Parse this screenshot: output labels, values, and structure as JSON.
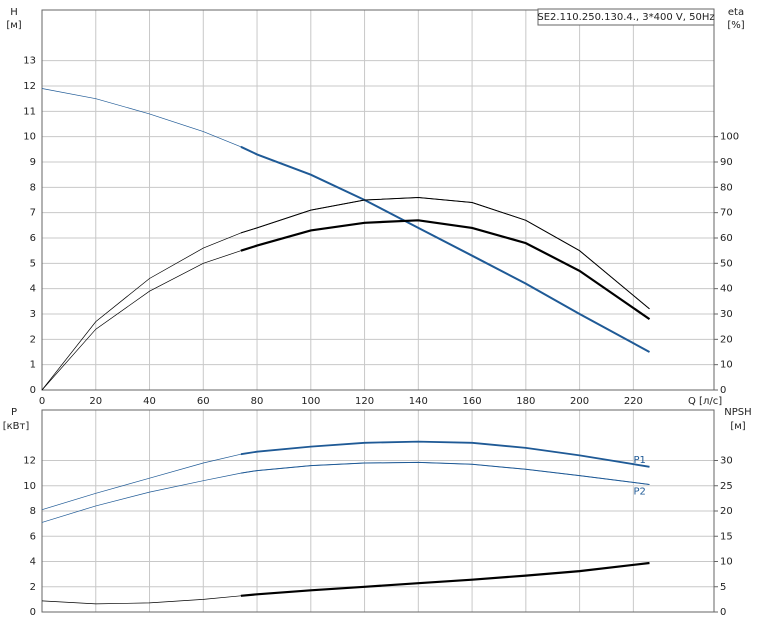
{
  "chart_data": [
    {
      "type": "line",
      "legend_box": "SE2.110.250.130.4., 3*400 V, 50Hz",
      "y_label": "H",
      "y_unit": "[м]",
      "y2_label": "eta",
      "y2_unit": "[%]",
      "x_label": "Q [л/с]",
      "x": [
        0,
        20,
        40,
        60,
        74,
        80,
        100,
        120,
        140,
        160,
        180,
        200,
        226
      ],
      "xlim": [
        0,
        250
      ],
      "xticks": [
        0,
        20,
        40,
        60,
        80,
        100,
        120,
        140,
        160,
        180,
        200,
        220
      ],
      "ylim": [
        0,
        15
      ],
      "yticks": [
        0,
        1,
        2,
        3,
        4,
        5,
        6,
        7,
        8,
        9,
        10,
        11,
        12,
        13
      ],
      "y2lim": [
        0,
        150
      ],
      "y2ticks": [
        0,
        10,
        20,
        30,
        40,
        50,
        60,
        70,
        80,
        90,
        100
      ],
      "highlight_xlim": [
        74,
        226
      ],
      "grid": true,
      "series": [
        {
          "color": "#1f5a96",
          "line_width": 2,
          "values": [
            11.9,
            11.5,
            10.9,
            10.2,
            9.6,
            9.3,
            8.5,
            7.5,
            6.4,
            5.3,
            4.2,
            3.0,
            1.5
          ]
        },
        {
          "color": "#000000",
          "line_width": 1,
          "axis": "y2",
          "values": [
            0,
            27,
            44,
            56,
            62,
            64,
            71,
            75,
            76,
            74,
            67,
            55,
            32
          ]
        },
        {
          "color": "#000000",
          "line_width": 2.2,
          "axis": "y2",
          "values": [
            0,
            24,
            39,
            50,
            55,
            57,
            63,
            66,
            67,
            64,
            58,
            47,
            28
          ]
        }
      ]
    },
    {
      "type": "line",
      "y_label": "P",
      "y_unit": "[кВт]",
      "y2_label": "NPSH",
      "y2_unit": "[м]",
      "x": [
        0,
        20,
        40,
        60,
        74,
        80,
        100,
        120,
        140,
        160,
        180,
        200,
        226
      ],
      "xlim": [
        0,
        250
      ],
      "xticks": [
        0,
        20,
        40,
        60,
        80,
        100,
        120,
        140,
        160,
        180,
        200,
        220
      ],
      "ylim": [
        0,
        16
      ],
      "yticks": [
        0,
        2,
        4,
        6,
        8,
        10,
        12
      ],
      "y2lim": [
        0,
        40
      ],
      "y2ticks": [
        0,
        5,
        10,
        15,
        20,
        25,
        30
      ],
      "highlight_xlim": [
        74,
        226
      ],
      "grid": true,
      "series": [
        {
          "name": "P1",
          "color": "#1f5a96",
          "line_width": 1.8,
          "values": [
            8.1,
            9.4,
            10.6,
            11.8,
            12.5,
            12.7,
            13.1,
            13.4,
            13.5,
            13.4,
            13.0,
            12.4,
            11.5
          ]
        },
        {
          "name": "P2",
          "color": "#1f5a96",
          "line_width": 1,
          "values": [
            7.1,
            8.4,
            9.5,
            10.4,
            11.0,
            11.2,
            11.6,
            11.8,
            11.85,
            11.7,
            11.3,
            10.8,
            10.1
          ]
        },
        {
          "color": "#000000",
          "line_width": 2.2,
          "axis": "y2",
          "values": [
            2.2,
            1.6,
            1.8,
            2.5,
            3.2,
            3.5,
            4.3,
            5.0,
            5.7,
            6.4,
            7.2,
            8.1,
            9.7
          ]
        }
      ]
    }
  ]
}
